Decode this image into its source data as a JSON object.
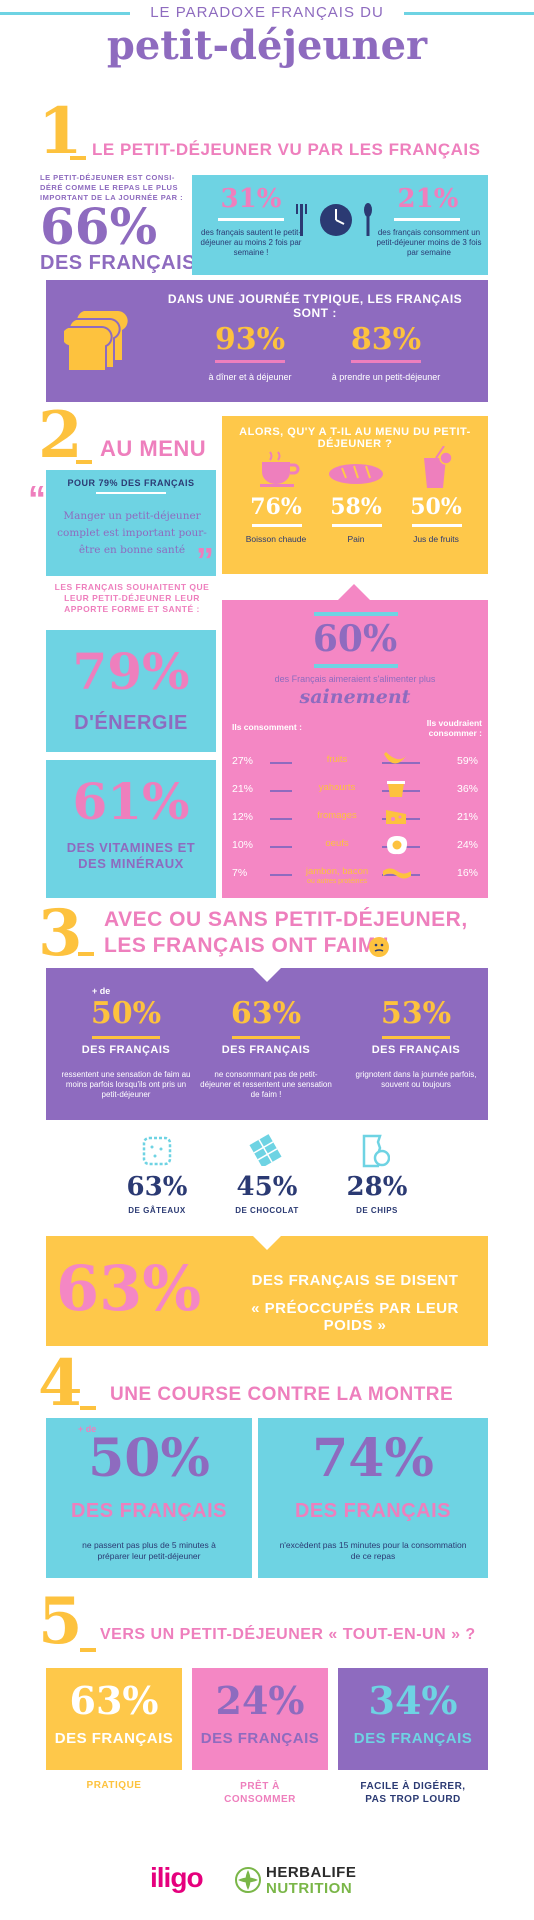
{
  "header": {
    "kicker": "LE PARADOXE FRANÇAIS DU",
    "title": "petit-déjeuner"
  },
  "s1": {
    "number": "1",
    "title": "LE PETIT-DÉJEUNER VU PAR LES FRANÇAIS",
    "intro": "LE PETIT-DÉJEUNER EST CONSI-DÉRÉ COMME LE REPAS LE PLUS IMPORTANT DE LA JOURNÉE PAR :",
    "big_pct": "66%",
    "big_label": "DES FRANÇAIS",
    "stat_a_pct": "31%",
    "stat_a_text": "des français sautent le petit-déjeuner au moins 2 fois par semaine !",
    "stat_b_pct": "21%",
    "stat_b_text": "des français consomment un petit-déjeuner moins de 3 fois par semaine",
    "typical_title": "DANS UNE JOURNÉE TYPIQUE, LES FRANÇAIS SONT :",
    "t1_pct": "93%",
    "t1_text": "à dîner et à déjeuner",
    "t2_pct": "83%",
    "t2_text": "à prendre un petit-déjeuner"
  },
  "s2": {
    "number": "2",
    "title": "AU MENU",
    "quote_head": "POUR 79% DES FRANÇAIS",
    "quote": "Manger un petit-déjeuner complet est important pour-être en bonne santé",
    "menu_title": "ALORS, QU'Y A T-IL AU MENU DU PETIT-DÉJEUNER ?",
    "menu": [
      {
        "pct": "76%",
        "label": "Boisson chaude"
      },
      {
        "pct": "58%",
        "label": "Pain"
      },
      {
        "pct": "50%",
        "label": "Jus de fruits"
      }
    ],
    "wish_intro": "LES FRANÇAIS SOUHAITENT QUE LEUR PETIT-DÉJEUNER LEUR APPORTE FORME ET SANTÉ :",
    "energy_pct": "79%",
    "energy_label": "D'ÉNERGIE",
    "vit_pct": "61%",
    "vit_label": "DES VITAMINES ET DES MINÉRAUX",
    "healthy_pct": "60%",
    "healthy_text": "des Français aimeraient s'alimenter plus",
    "healthy_word": "sainement",
    "col_left": "Ils consomment :",
    "col_right": "Ils voudraient consommer :",
    "foods": [
      {
        "now": "27%",
        "name": "fruits",
        "sub": "",
        "want": "59%"
      },
      {
        "now": "21%",
        "name": "yahourts",
        "sub": "",
        "want": "36%"
      },
      {
        "now": "12%",
        "name": "fromages",
        "sub": "",
        "want": "21%"
      },
      {
        "now": "10%",
        "name": "oeufs",
        "sub": "",
        "want": "24%"
      },
      {
        "now": "7%",
        "name": "jambon, bacon",
        "sub": "ou autres protéines",
        "want": "16%"
      }
    ]
  },
  "s3": {
    "number": "3",
    "title_line1": "AVEC OU SANS PETIT-DÉJEUNER,",
    "title_line2": "LES FRANÇAIS ONT FAIM !",
    "hunger": [
      {
        "prefix": "+ de",
        "pct": "50%",
        "label": "DES FRANÇAIS",
        "text": "ressentent une sensation de faim au moins parfois lorsqu'ils ont pris un petit-déjeuner"
      },
      {
        "prefix": "",
        "pct": "63%",
        "label": "DES FRANÇAIS",
        "text": "ne consommant pas de petit-déjeuner et ressentent une sensation de faim !"
      },
      {
        "prefix": "",
        "pct": "53%",
        "label": "DES FRANÇAIS",
        "text": "grignotent dans la journée parfois, souvent ou toujours"
      }
    ],
    "snacks": [
      {
        "pct": "63%",
        "label": "DE GÂTEAUX",
        "icon": "cookie-icon"
      },
      {
        "pct": "45%",
        "label": "DE CHOCOLAT",
        "icon": "chocolate-icon"
      },
      {
        "pct": "28%",
        "label": "DE CHIPS",
        "icon": "chips-icon"
      }
    ],
    "weight_pct": "63%",
    "weight_line1": "DES FRANÇAIS SE DISENT",
    "weight_line2": "« PRÉOCCUPÉS PAR LEUR POIDS »"
  },
  "s4": {
    "number": "4",
    "title": "UNE COURSE CONTRE LA MONTRE",
    "a_prefix": "+ de",
    "a_pct": "50%",
    "a_label": "DES FRANÇAIS",
    "a_text": "ne passent pas plus de 5 minutes à préparer leur petit-déjeuner",
    "b_pct": "74%",
    "b_label": "DES FRANÇAIS",
    "b_text": "n'excèdent pas 15 minutes pour la consommation de ce repas"
  },
  "s5": {
    "number": "5",
    "title": "VERS UN PETIT-DÉJEUNER « TOUT-EN-UN » ?",
    "items": [
      {
        "pct": "63%",
        "label": "DES FRANÇAIS",
        "caption": "PRATIQUE"
      },
      {
        "pct": "24%",
        "label": "DES FRANÇAIS",
        "caption": "PRÊT À CONSOMMER"
      },
      {
        "pct": "34%",
        "label": "DES FRANÇAIS",
        "caption": "FACILE À DIGÉRER, PAS TROP LOURD"
      }
    ]
  },
  "footer": {
    "logo1": "iligo",
    "logo2_line1": "HERBALIFE",
    "logo2_line2": "NUTRITION"
  },
  "colors": {
    "cyan": "#6ed3e3",
    "purple": "#8e6bbf",
    "pink": "#f487c4",
    "yellow": "#fec84a",
    "navy": "#2b3a73"
  }
}
